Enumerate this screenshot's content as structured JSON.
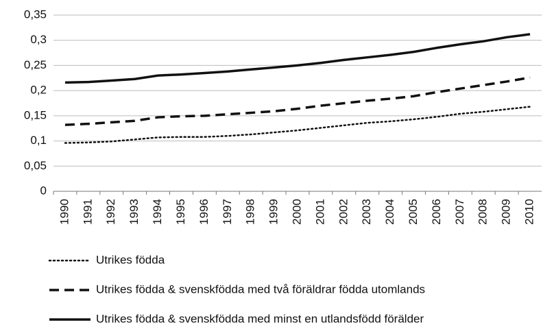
{
  "chart_data": {
    "type": "line",
    "categories": [
      "1990",
      "1991",
      "1992",
      "1993",
      "1994",
      "1995",
      "1996",
      "1997",
      "1998",
      "1999",
      "2000",
      "2001",
      "2002",
      "2003",
      "2004",
      "2005",
      "2006",
      "2007",
      "2008",
      "2009",
      "2010"
    ],
    "series": [
      {
        "name": "Utrikes födda",
        "color": "#111111",
        "dash": "dotted",
        "values": [
          0.096,
          0.097,
          0.099,
          0.103,
          0.107,
          0.108,
          0.108,
          0.11,
          0.113,
          0.117,
          0.121,
          0.126,
          0.131,
          0.136,
          0.139,
          0.143,
          0.148,
          0.154,
          0.158,
          0.163,
          0.168
        ]
      },
      {
        "name": "Utrikes födda & svenskfödda med två föräldrar födda utomlands",
        "color": "#111111",
        "dash": "dashed",
        "values": [
          0.132,
          0.134,
          0.137,
          0.14,
          0.147,
          0.149,
          0.15,
          0.153,
          0.156,
          0.159,
          0.164,
          0.17,
          0.175,
          0.18,
          0.184,
          0.189,
          0.197,
          0.204,
          0.211,
          0.218,
          0.226
        ]
      },
      {
        "name": "Utrikes födda & svenskfödda med minst en utlandsfödd förälder",
        "color": "#111111",
        "dash": "solid",
        "values": [
          0.216,
          0.217,
          0.22,
          0.223,
          0.23,
          0.232,
          0.235,
          0.238,
          0.242,
          0.246,
          0.25,
          0.255,
          0.261,
          0.266,
          0.271,
          0.277,
          0.285,
          0.292,
          0.298,
          0.306,
          0.312
        ]
      }
    ],
    "ylim": [
      0,
      0.35
    ],
    "yticks": [
      0,
      {
        "value": 0.05,
        "label": "0,05"
      },
      {
        "value": 0.1,
        "label": "0,1"
      },
      {
        "value": 0.15,
        "label": "0,15"
      },
      {
        "value": 0.2,
        "label": "0,2"
      },
      {
        "value": 0.25,
        "label": "0,25"
      },
      {
        "value": 0.3,
        "label": "0,3"
      },
      {
        "value": 0.35,
        "label": "0,35"
      }
    ],
    "grid": true
  }
}
